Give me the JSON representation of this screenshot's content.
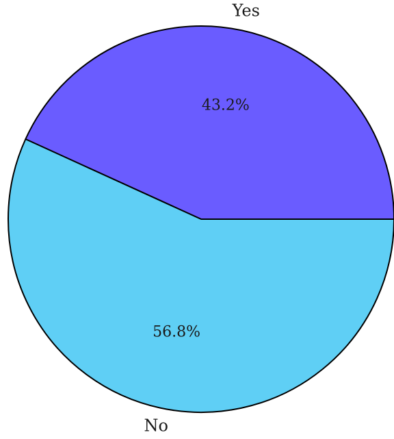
{
  "chart_data": {
    "type": "pie",
    "slices": [
      {
        "label": "Yes",
        "value": 43.2,
        "percent_label": "43.2%",
        "color": "#6a5cff"
      },
      {
        "label": "No",
        "value": 56.8,
        "percent_label": "56.8%",
        "color": "#5fcff5"
      }
    ],
    "start_angle_deg": 0,
    "direction": "counterclockwise",
    "edge_color": "#000000",
    "legend": "none"
  }
}
